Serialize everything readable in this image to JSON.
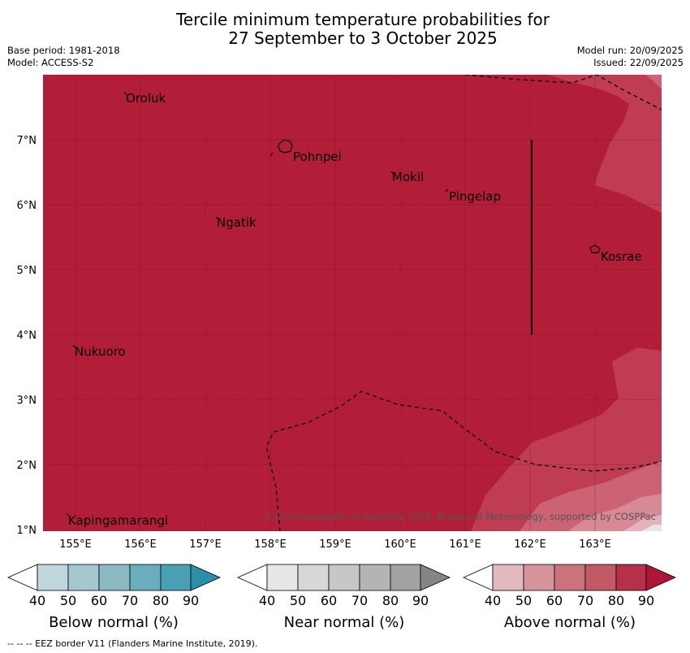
{
  "title_line1": "Tercile minimum temperature probabilities for",
  "title_line2": "27 September to 3 October 2025",
  "meta_left": [
    "Base period: 1981-2018",
    "Model: ACCESS-S2"
  ],
  "meta_right": [
    "Model run: 20/09/2025",
    "Issued: 22/09/2025"
  ],
  "map": {
    "lon_ticks": [
      "155°E",
      "156°E",
      "157°E",
      "158°E",
      "159°E",
      "160°E",
      "161°E",
      "162°E",
      "163°E"
    ],
    "lat_ticks": [
      "7°N",
      "6°N",
      "5°N",
      "4°N",
      "3°N",
      "2°N",
      "1°N"
    ],
    "places": [
      "Oroluk",
      "Pohnpei",
      "Mokil",
      "Pingelap",
      "Ngatik",
      "Kosrae",
      "Nukuoro",
      "Kapingamarangi"
    ],
    "credit": "© Commonwealth of Australia 2025, Bureau of Meteorology, supported by COSPPac"
  },
  "colorbars": [
    {
      "label": "Below normal (%)",
      "ticks": [
        "40",
        "50",
        "60",
        "70",
        "80",
        "90"
      ],
      "colors": [
        "#ffffff",
        "#c0d6dd",
        "#a5c7cf",
        "#8bb9c4",
        "#6aadbd",
        "#49a0b4",
        "#2c8fa8"
      ]
    },
    {
      "label": "Near normal (%)",
      "ticks": [
        "40",
        "50",
        "60",
        "70",
        "80",
        "90"
      ],
      "colors": [
        "#ffffff",
        "#e6e6e6",
        "#d7d7d7",
        "#c7c7c7",
        "#b4b4b4",
        "#a2a2a2",
        "#858585"
      ]
    },
    {
      "label": "Above normal (%)",
      "ticks": [
        "40",
        "50",
        "60",
        "70",
        "80",
        "90"
      ],
      "colors": [
        "#ffffff",
        "#e3b9c0",
        "#d6939c",
        "#cc727e",
        "#c45966",
        "#b7304a",
        "#ad1634"
      ]
    }
  ],
  "footnote": "--  --  -- EEZ border V11 (Flanders Marine Institute, 2019).",
  "colors": {
    "above_80_90": "#b21e38",
    "above_70_80": "#c03c52",
    "above_60_70": "#cc6374",
    "above_50_60": "#d78a96",
    "above_40_50": "#e2b3ba"
  }
}
